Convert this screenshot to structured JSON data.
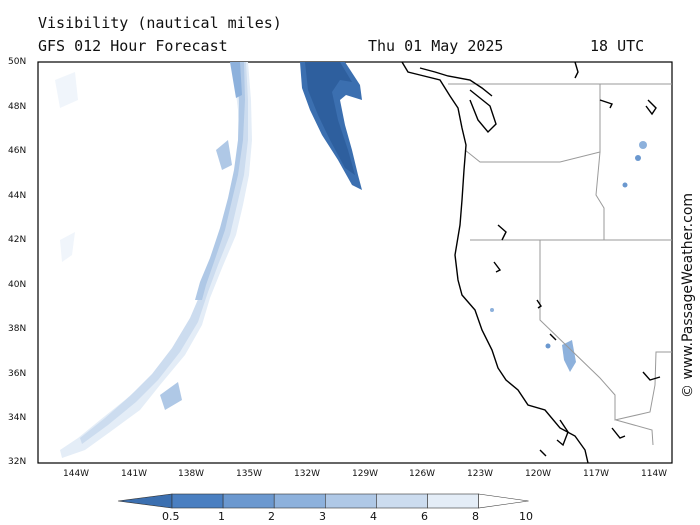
{
  "header": {
    "line1": "Visibility (nautical miles)",
    "line2_left": "GFS 012 Hour Forecast",
    "line2_date": "Thu 01 May 2025",
    "line2_time": "18 UTC"
  },
  "credit": "© www.PassageWeather.com",
  "lat_labels": [
    "50N",
    "48N",
    "46N",
    "44N",
    "42N",
    "40N",
    "38N",
    "36N",
    "34N",
    "32N"
  ],
  "lon_labels": [
    "144W",
    "141W",
    "138W",
    "135W",
    "132W",
    "129W",
    "126W",
    "123W",
    "120W",
    "117W",
    "114W"
  ],
  "legend": {
    "labels": [
      "0.5",
      "1",
      "2",
      "3",
      "4",
      "6",
      "8",
      "10"
    ],
    "colors": [
      "#3b6fb0",
      "#4a7fc1",
      "#6b98cf",
      "#8db1dc",
      "#afc8e6",
      "#ccdcef",
      "#e4edf7",
      "#ffffff"
    ]
  }
}
